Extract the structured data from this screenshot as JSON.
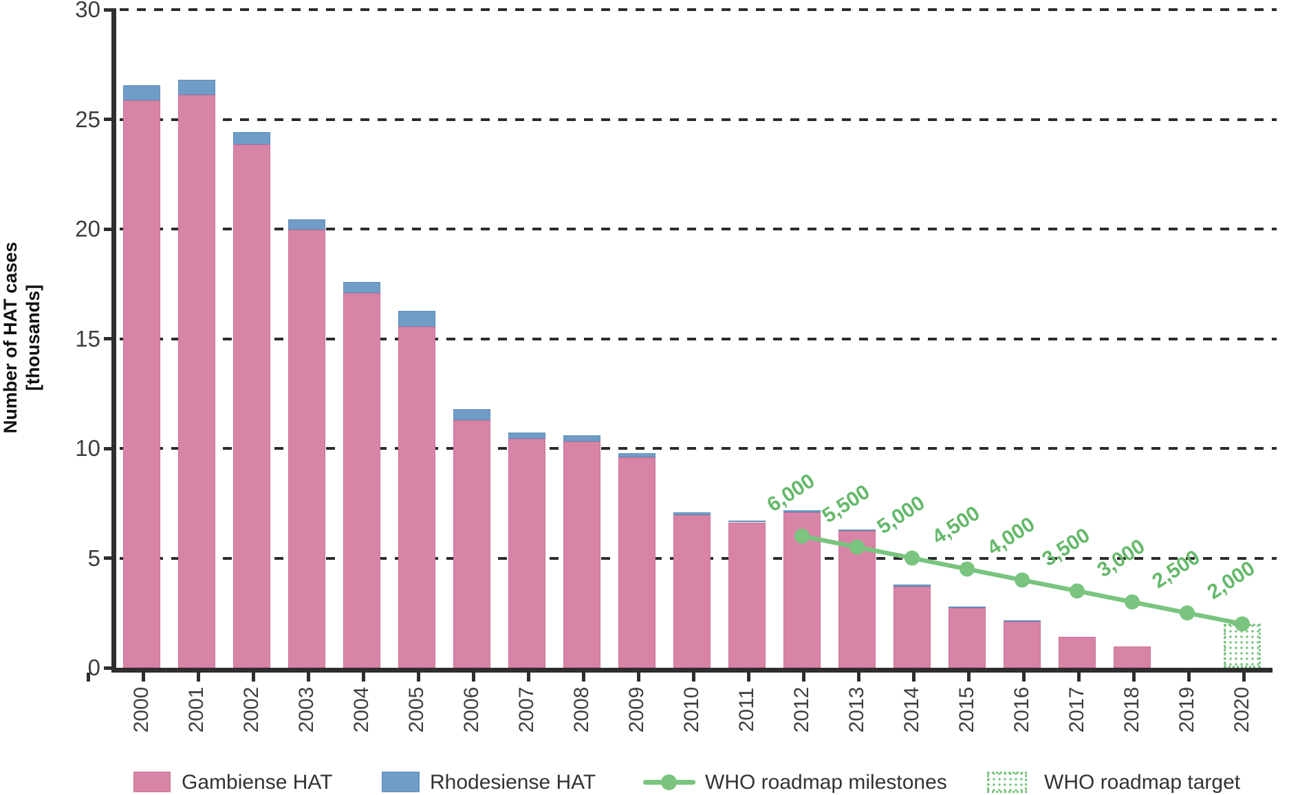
{
  "chart_data": {
    "type": "bar",
    "subtype": "stacked-with-milestone-line",
    "units": "thousands of cases",
    "ylabel_line1": "Number of HAT cases",
    "ylabel_line2": "[thousands]",
    "xlabel": "",
    "ylim": [
      0,
      30
    ],
    "ytick_labels": [
      "0",
      "5",
      "10",
      "15",
      "20",
      "25",
      "30"
    ],
    "ytick_values": [
      0,
      5,
      10,
      15,
      20,
      25,
      30
    ],
    "grid": "horizontal dashed black",
    "legend_position": "bottom",
    "categories": [
      "2000",
      "2001",
      "2002",
      "2003",
      "2004",
      "2005",
      "2006",
      "2007",
      "2008",
      "2009",
      "2010",
      "2011",
      "2012",
      "2013",
      "2014",
      "2015",
      "2016",
      "2017",
      "2018",
      "2019",
      "2020"
    ],
    "series": [
      {
        "name": "Gambiense HAT",
        "color": "#d884a7",
        "values": [
          25.86,
          26.1,
          23.87,
          19.96,
          17.08,
          15.55,
          11.3,
          10.45,
          10.31,
          9.6,
          6.95,
          6.63,
          7.1,
          6.23,
          3.7,
          2.73,
          2.1,
          1.42,
          0.96,
          0,
          0
        ]
      },
      {
        "name": "Rhodesiense HAT",
        "color": "#6f9dc8",
        "values": [
          0.7,
          0.7,
          0.55,
          0.48,
          0.5,
          0.73,
          0.48,
          0.28,
          0.27,
          0.17,
          0.13,
          0.08,
          0.08,
          0.06,
          0.08,
          0.05,
          0.06,
          0,
          0,
          0,
          0
        ]
      }
    ],
    "milestones": {
      "name": "WHO roadmap milestones",
      "color": "#7ac47f",
      "years": [
        "2012",
        "2013",
        "2014",
        "2015",
        "2016",
        "2017",
        "2018",
        "2019",
        "2020"
      ],
      "values": [
        6.0,
        5.5,
        5.0,
        4.5,
        4.0,
        3.5,
        3.0,
        2.5,
        2.0
      ],
      "labels": [
        "6,000",
        "5,500",
        "5,000",
        "4,500",
        "4,000",
        "3,500",
        "3,000",
        "2,500",
        "2,000"
      ]
    },
    "target": {
      "name": "WHO roadmap target",
      "year": "2020",
      "value": 2.0
    }
  },
  "legend": {
    "gambiense_label": "Gambiense HAT",
    "rhodesiense_label": "Rhodesiense HAT",
    "milestones_label": "WHO roadmap milestones",
    "target_label": "WHO roadmap target"
  },
  "colors": {
    "gambiense": "#d884a7",
    "rhodesiense": "#6f9dc8",
    "roadmap_green": "#7ac47f",
    "axis": "#2e2e2e"
  }
}
